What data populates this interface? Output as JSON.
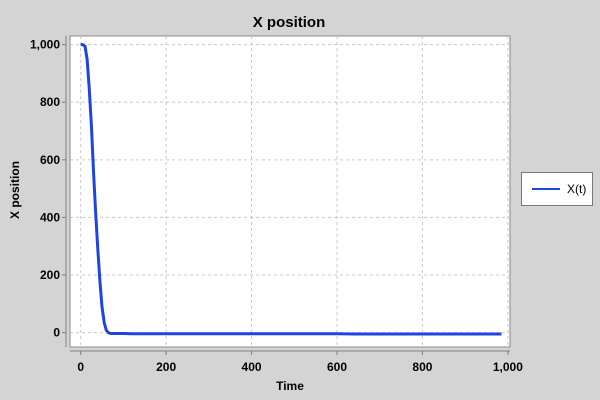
{
  "chart_data": {
    "type": "line",
    "title": "X position",
    "xlabel": "Time",
    "ylabel": "X position",
    "xlim": [
      -25,
      1005
    ],
    "ylim": [
      -50,
      1030
    ],
    "xticks": [
      0,
      200,
      400,
      600,
      800,
      1000
    ],
    "xtick_labels": [
      "0",
      "200",
      "400",
      "600",
      "800",
      "1,000"
    ],
    "yticks": [
      0,
      200,
      400,
      600,
      800,
      1000
    ],
    "ytick_labels": [
      "0",
      "200",
      "400",
      "600",
      "800",
      "1,000"
    ],
    "grid": true,
    "legend_position": "right",
    "series": [
      {
        "name": "X(t)",
        "color": "#1f45e0",
        "x": [
          0,
          5,
          10,
          15,
          20,
          25,
          30,
          35,
          40,
          45,
          50,
          55,
          60,
          65,
          70,
          80,
          100,
          120,
          200,
          400,
          600,
          640,
          800,
          985
        ],
        "y": [
          1000,
          1000,
          995,
          950,
          850,
          720,
          560,
          420,
          290,
          180,
          90,
          35,
          8,
          0,
          -3,
          -3,
          -3,
          -4,
          -4,
          -4,
          -4,
          -5,
          -5,
          -5
        ]
      }
    ]
  }
}
